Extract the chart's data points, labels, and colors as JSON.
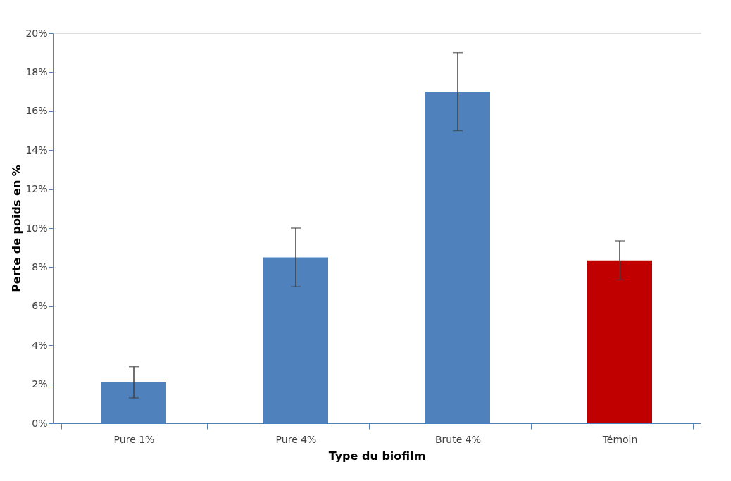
{
  "chart_data": {
    "type": "bar",
    "xlabel": "Type du biofilm",
    "ylabel": "Perte de poids en %",
    "categories": [
      "Pure 1%",
      "Pure 4%",
      "Brute 4%",
      "Témoin"
    ],
    "values": [
      2.1,
      8.5,
      17,
      8.35
    ],
    "errors": [
      0.8,
      1.5,
      2,
      1
    ],
    "colors": [
      "#4f81bd",
      "#4f81bd",
      "#4f81bd",
      "#c00000"
    ],
    "ylim": [
      0,
      20
    ],
    "yticks": [
      {
        "value": 0,
        "label": "0%"
      },
      {
        "value": 2,
        "label": "2%"
      },
      {
        "value": 4,
        "label": "4%"
      },
      {
        "value": 6,
        "label": "6%"
      },
      {
        "value": 8,
        "label": "8%"
      },
      {
        "value": 10,
        "label": "10%"
      },
      {
        "value": 12,
        "label": "12%"
      },
      {
        "value": 14,
        "label": "14%"
      },
      {
        "value": 16,
        "label": "16%"
      },
      {
        "value": 18,
        "label": "18%"
      },
      {
        "value": 20,
        "label": "20%"
      }
    ],
    "grid": false
  }
}
